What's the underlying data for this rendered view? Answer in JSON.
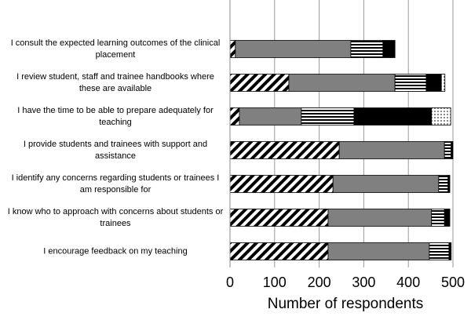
{
  "chart_data": {
    "type": "stacked-barh",
    "xlabel": "Number of respondents",
    "categories": [
      "I consult the expected learning outcomes of the clinical\nplacement",
      "I review student, staff and trainee handbooks where\nthese are available",
      "I have the time to be able to prepare adequately for\nteaching",
      "I provide students and trainees with support and\nassistance",
      "I identify any concerns regarding students or trainees  I\nam responsible for",
      "I know who to approach with concerns about students or\ntrainees",
      "I encourage feedback on my teaching"
    ],
    "series": [
      {
        "pattern": "diagonal",
        "color": "#000000",
        "values": [
          12,
          132,
          21,
          245,
          231,
          220,
          220
        ]
      },
      {
        "pattern": "solid",
        "color": "#808080",
        "values": [
          259,
          238,
          139,
          236,
          237,
          232,
          227
        ]
      },
      {
        "pattern": "horizontal",
        "color": "#000000",
        "values": [
          72,
          70,
          118,
          15,
          21,
          29,
          44
        ]
      },
      {
        "pattern": "solid",
        "color": "#000000",
        "values": [
          27,
          34,
          174,
          4,
          4,
          12,
          5
        ]
      },
      {
        "pattern": "dots",
        "color": "#000000",
        "values": [
          0,
          8,
          43,
          0,
          0,
          0,
          0
        ]
      }
    ],
    "xlim": [
      0,
      500
    ],
    "xticks": [
      0,
      100,
      200,
      300,
      400,
      500
    ],
    "grid": true
  }
}
